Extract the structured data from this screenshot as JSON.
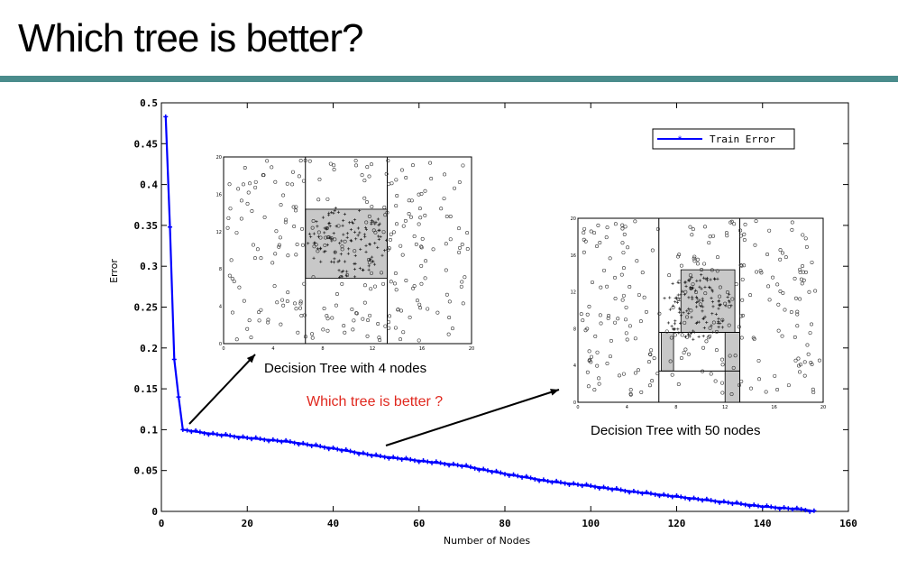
{
  "slide": {
    "title": "Which tree is better?"
  },
  "chart_data": {
    "type": "line",
    "xlabel": "Number of Nodes",
    "ylabel": "Error",
    "xlim": [
      0,
      160
    ],
    "ylim": [
      0,
      0.5
    ],
    "xticks": [
      "0",
      "20",
      "40",
      "60",
      "80",
      "100",
      "120",
      "140",
      "160"
    ],
    "yticks": [
      "0",
      "0.05",
      "0.1",
      "0.15",
      "0.2",
      "0.25",
      "0.3",
      "0.35",
      "0.4",
      "0.45",
      "0.5"
    ],
    "legend": {
      "position": "top-right",
      "entries": [
        "Train Error"
      ]
    },
    "series": [
      {
        "name": "Train Error",
        "color": "#0000ff",
        "x": [
          1,
          2,
          3,
          4,
          5,
          10,
          20,
          30,
          40,
          50,
          60,
          70,
          80,
          90,
          100,
          110,
          120,
          130,
          140,
          150,
          152
        ],
        "y": [
          0.483,
          0.348,
          0.186,
          0.14,
          0.1,
          0.096,
          0.09,
          0.085,
          0.077,
          0.068,
          0.062,
          0.056,
          0.046,
          0.037,
          0.031,
          0.024,
          0.018,
          0.012,
          0.006,
          0.002,
          0.0
        ]
      }
    ],
    "annotations": {
      "inset_left_caption": "Decision Tree with 4 nodes",
      "inset_right_caption": "Decision Tree with 50 nodes",
      "question": "Which tree is better ?"
    },
    "inset_ticks": [
      "0",
      "4",
      "8",
      "12",
      "16",
      "20"
    ]
  }
}
